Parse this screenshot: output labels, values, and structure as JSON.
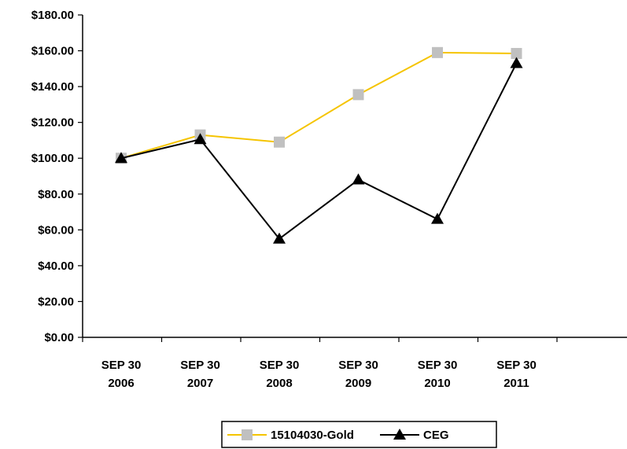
{
  "chart_data": {
    "type": "line",
    "title": "",
    "xlabel": "",
    "ylabel": "",
    "categories": [
      [
        "SEP 30",
        "2006"
      ],
      [
        "SEP 30",
        "2007"
      ],
      [
        "SEP 30",
        "2008"
      ],
      [
        "SEP 30",
        "2009"
      ],
      [
        "SEP 30",
        "2010"
      ],
      [
        "SEP 30",
        "2011"
      ]
    ],
    "y_ticks": [
      "$0.00",
      "$20.00",
      "$40.00",
      "$60.00",
      "$80.00",
      "$100.00",
      "$120.00",
      "$140.00",
      "$160.00",
      "$180.00"
    ],
    "ylim": [
      0,
      180
    ],
    "grid": false,
    "legend_position": "bottom",
    "series": [
      {
        "name": "15104030-Gold",
        "color": "#f5c400",
        "marker": "square",
        "marker_color": "#c0c0c0",
        "values": [
          100,
          113,
          109,
          135.5,
          159,
          158.5
        ]
      },
      {
        "name": "CEG",
        "color": "#000000",
        "marker": "triangle",
        "marker_color": "#000000",
        "values": [
          100,
          110.5,
          55,
          88,
          66,
          153
        ]
      }
    ]
  }
}
